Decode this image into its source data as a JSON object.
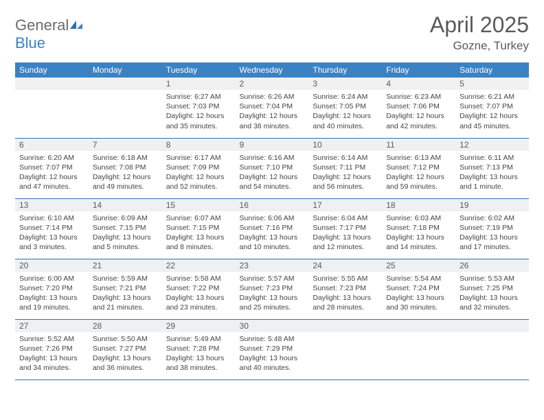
{
  "logo": {
    "text1": "General",
    "text2": "Blue"
  },
  "title": "April 2025",
  "location": "Gozne, Turkey",
  "colors": {
    "header_bg": "#3b82c4",
    "header_fg": "#ffffff",
    "daynum_bg": "#eef0f1",
    "border": "#3b6ea0",
    "text": "#444444",
    "title": "#5a5a5a"
  },
  "weekdays": [
    "Sunday",
    "Monday",
    "Tuesday",
    "Wednesday",
    "Thursday",
    "Friday",
    "Saturday"
  ],
  "weeks": [
    [
      null,
      null,
      {
        "n": "1",
        "r": "6:27 AM",
        "s": "7:03 PM",
        "d": "12 hours and 35 minutes."
      },
      {
        "n": "2",
        "r": "6:26 AM",
        "s": "7:04 PM",
        "d": "12 hours and 38 minutes."
      },
      {
        "n": "3",
        "r": "6:24 AM",
        "s": "7:05 PM",
        "d": "12 hours and 40 minutes."
      },
      {
        "n": "4",
        "r": "6:23 AM",
        "s": "7:06 PM",
        "d": "12 hours and 42 minutes."
      },
      {
        "n": "5",
        "r": "6:21 AM",
        "s": "7:07 PM",
        "d": "12 hours and 45 minutes."
      }
    ],
    [
      {
        "n": "6",
        "r": "6:20 AM",
        "s": "7:07 PM",
        "d": "12 hours and 47 minutes."
      },
      {
        "n": "7",
        "r": "6:18 AM",
        "s": "7:08 PM",
        "d": "12 hours and 49 minutes."
      },
      {
        "n": "8",
        "r": "6:17 AM",
        "s": "7:09 PM",
        "d": "12 hours and 52 minutes."
      },
      {
        "n": "9",
        "r": "6:16 AM",
        "s": "7:10 PM",
        "d": "12 hours and 54 minutes."
      },
      {
        "n": "10",
        "r": "6:14 AM",
        "s": "7:11 PM",
        "d": "12 hours and 56 minutes."
      },
      {
        "n": "11",
        "r": "6:13 AM",
        "s": "7:12 PM",
        "d": "12 hours and 59 minutes."
      },
      {
        "n": "12",
        "r": "6:11 AM",
        "s": "7:13 PM",
        "d": "13 hours and 1 minute."
      }
    ],
    [
      {
        "n": "13",
        "r": "6:10 AM",
        "s": "7:14 PM",
        "d": "13 hours and 3 minutes."
      },
      {
        "n": "14",
        "r": "6:09 AM",
        "s": "7:15 PM",
        "d": "13 hours and 5 minutes."
      },
      {
        "n": "15",
        "r": "6:07 AM",
        "s": "7:15 PM",
        "d": "13 hours and 8 minutes."
      },
      {
        "n": "16",
        "r": "6:06 AM",
        "s": "7:16 PM",
        "d": "13 hours and 10 minutes."
      },
      {
        "n": "17",
        "r": "6:04 AM",
        "s": "7:17 PM",
        "d": "13 hours and 12 minutes."
      },
      {
        "n": "18",
        "r": "6:03 AM",
        "s": "7:18 PM",
        "d": "13 hours and 14 minutes."
      },
      {
        "n": "19",
        "r": "6:02 AM",
        "s": "7:19 PM",
        "d": "13 hours and 17 minutes."
      }
    ],
    [
      {
        "n": "20",
        "r": "6:00 AM",
        "s": "7:20 PM",
        "d": "13 hours and 19 minutes."
      },
      {
        "n": "21",
        "r": "5:59 AM",
        "s": "7:21 PM",
        "d": "13 hours and 21 minutes."
      },
      {
        "n": "22",
        "r": "5:58 AM",
        "s": "7:22 PM",
        "d": "13 hours and 23 minutes."
      },
      {
        "n": "23",
        "r": "5:57 AM",
        "s": "7:23 PM",
        "d": "13 hours and 25 minutes."
      },
      {
        "n": "24",
        "r": "5:55 AM",
        "s": "7:23 PM",
        "d": "13 hours and 28 minutes."
      },
      {
        "n": "25",
        "r": "5:54 AM",
        "s": "7:24 PM",
        "d": "13 hours and 30 minutes."
      },
      {
        "n": "26",
        "r": "5:53 AM",
        "s": "7:25 PM",
        "d": "13 hours and 32 minutes."
      }
    ],
    [
      {
        "n": "27",
        "r": "5:52 AM",
        "s": "7:26 PM",
        "d": "13 hours and 34 minutes."
      },
      {
        "n": "28",
        "r": "5:50 AM",
        "s": "7:27 PM",
        "d": "13 hours and 36 minutes."
      },
      {
        "n": "29",
        "r": "5:49 AM",
        "s": "7:28 PM",
        "d": "13 hours and 38 minutes."
      },
      {
        "n": "30",
        "r": "5:48 AM",
        "s": "7:29 PM",
        "d": "13 hours and 40 minutes."
      },
      null,
      null,
      null
    ]
  ],
  "labels": {
    "sunrise": "Sunrise:",
    "sunset": "Sunset:",
    "daylight": "Daylight:"
  }
}
